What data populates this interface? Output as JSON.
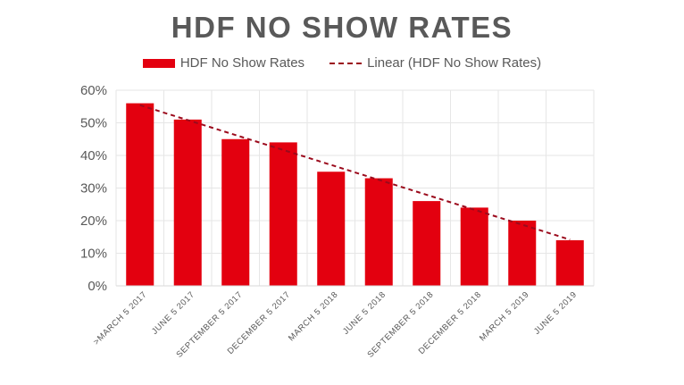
{
  "chart_data": {
    "type": "bar",
    "title": "HDF NO SHOW RATES",
    "categories": [
      ">MARCH 5 2017",
      "JUNE 5 2017",
      "SEPTEMBER 5 2017",
      "DECEMBER 5 2017",
      "MARCH 5 2018",
      "JUNE 5 2018",
      "SEPTEMBER 5 2018",
      "DECEMBER 5 2018",
      "MARCH 5 2019",
      "JUNE 5 2019"
    ],
    "series": [
      {
        "name": "HDF No Show Rates",
        "values": [
          0.56,
          0.51,
          0.45,
          0.44,
          0.35,
          0.33,
          0.26,
          0.24,
          0.2,
          0.14
        ]
      }
    ],
    "trendline": {
      "name": "Linear (HDF No Show Rates)",
      "type": "linear"
    },
    "ylim": [
      0,
      0.6
    ],
    "yticks": [
      "0%",
      "10%",
      "20%",
      "30%",
      "40%",
      "50%",
      "60%"
    ],
    "grid": true,
    "legend_position": "top",
    "colors": {
      "bar": "#e3000f",
      "trendline": "#9b0a1c",
      "grid": "#e6e6e6",
      "text": "#595959"
    }
  }
}
